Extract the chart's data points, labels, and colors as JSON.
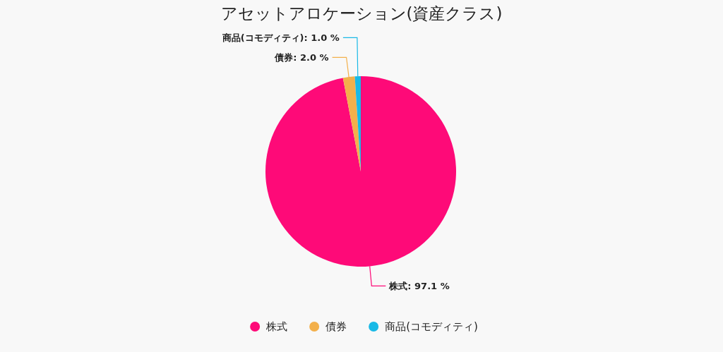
{
  "chart_data": {
    "type": "pie",
    "title": "アセットアロケーション(資産クラス)",
    "categories": [
      "株式",
      "債券",
      "商品(コモディティ)"
    ],
    "values": [
      97.1,
      2.0,
      1.0
    ],
    "value_labels": [
      "株式: 97.1 %",
      "債券: 2.0 %",
      "商品(コモディティ): 1.0 %"
    ],
    "colors": [
      "#fe0a78",
      "#f3b04b",
      "#19b9e6"
    ],
    "legend": "bottom"
  }
}
